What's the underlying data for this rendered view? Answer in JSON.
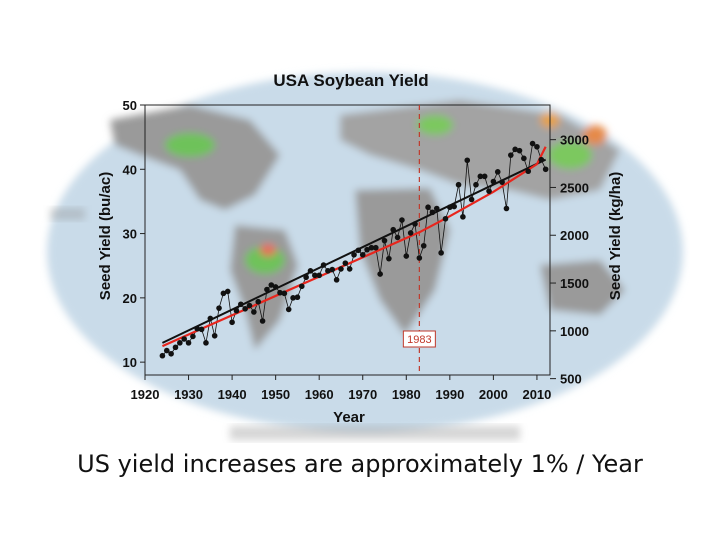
{
  "caption": "US yield increases are approximately 1% / Year",
  "colors": {
    "trend": "#e8251d",
    "series": "#111111",
    "marker": "#c0392b",
    "map_ocean": "#c9dbe9",
    "map_land": "#9a9a9a"
  },
  "chart_data": {
    "type": "line",
    "title": "USA Soybean Yield",
    "xlabel": "Year",
    "ylabel": "Seed Yield (bu/ac)",
    "y2label": "Seed Yield (kg/ha)",
    "xlim": [
      1920,
      2013
    ],
    "ylim": [
      8,
      50
    ],
    "xticks": [
      1920,
      1930,
      1940,
      1950,
      1960,
      1970,
      1980,
      1990,
      2000,
      2010
    ],
    "yticks": [
      10,
      20,
      30,
      40,
      50
    ],
    "y2ticks": [
      500,
      1000,
      1500,
      2000,
      2500,
      3000
    ],
    "grid": false,
    "annotations": [
      {
        "type": "vline",
        "x": 1983,
        "label": "1983"
      }
    ],
    "series": [
      {
        "kind": "observed",
        "x": [
          1924,
          1925,
          1926,
          1927,
          1928,
          1929,
          1930,
          1931,
          1932,
          1933,
          1934,
          1935,
          1936,
          1937,
          1938,
          1939,
          1940,
          1941,
          1942,
          1943,
          1944,
          1945,
          1946,
          1947,
          1948,
          1949,
          1950,
          1951,
          1952,
          1953,
          1954,
          1955,
          1956,
          1957,
          1958,
          1959,
          1960,
          1961,
          1962,
          1963,
          1964,
          1965,
          1966,
          1967,
          1968,
          1969,
          1970,
          1971,
          1972,
          1973,
          1974,
          1975,
          1976,
          1977,
          1978,
          1979,
          1980,
          1981,
          1982,
          1983,
          1984,
          1985,
          1986,
          1987,
          1988,
          1989,
          1990,
          1991,
          1992,
          1993,
          1994,
          1995,
          1996,
          1997,
          1998,
          1999,
          2000,
          2001,
          2002,
          2003,
          2004,
          2005,
          2006,
          2007,
          2008,
          2009,
          2010,
          2011,
          2012
        ],
        "values": [
          11,
          11.8,
          11.3,
          12.3,
          13,
          13.6,
          13,
          14,
          15.2,
          15.1,
          13,
          16.8,
          14.1,
          18.4,
          20.7,
          21,
          16.2,
          18,
          19,
          18.3,
          18.8,
          17.8,
          19.4,
          16.4,
          21.3,
          22,
          21.7,
          20.8,
          20.7,
          18.2,
          20,
          20.1,
          21.8,
          23.2,
          24.2,
          23.5,
          23.5,
          25.1,
          24.2,
          24.4,
          22.8,
          24.5,
          25.4,
          24.5,
          26.7,
          27.4,
          26.7,
          27.5,
          27.8,
          27.8,
          23.7,
          28.9,
          26.1,
          30.6,
          29.4,
          32.1,
          26.5,
          30.1,
          31.5,
          26.2,
          28.1,
          34.1,
          33.3,
          33.9,
          27.0,
          32.3,
          34.1,
          34.2,
          37.6,
          32.6,
          41.4,
          35.3,
          37.6,
          38.9,
          38.9,
          36.6,
          38.1,
          39.6,
          38.0,
          33.9,
          42.2,
          43.1,
          42.9,
          41.7,
          39.7,
          44.0,
          43.5,
          41.5,
          40.0
        ]
      },
      {
        "kind": "trend",
        "x": [
          1924,
          1935,
          1945,
          1955,
          1965,
          1975,
          1983,
          1990,
          2000,
          2010,
          2012
        ],
        "values": [
          12.5,
          15.8,
          18.8,
          21.8,
          24.8,
          27.8,
          30.2,
          32.7,
          36.5,
          40.8,
          43.5
        ]
      }
    ]
  }
}
